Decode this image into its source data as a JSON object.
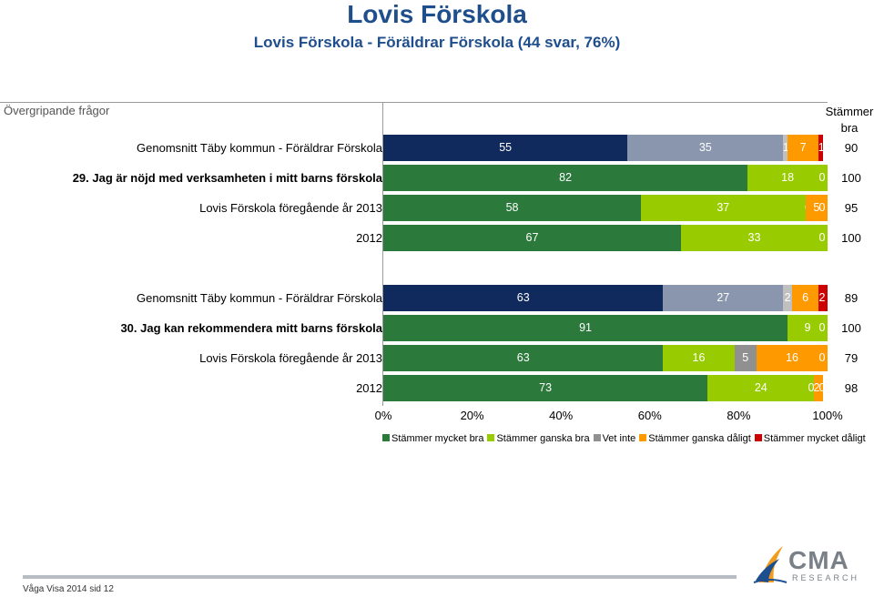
{
  "header": {
    "title": "Lovis Förskola",
    "subtitle": "Lovis Förskola - Föräldrar Förskola (44 svar,  76%)"
  },
  "section_label": "Övergripande frågor",
  "column_header": "Stämmer bra",
  "footer": "Våga Visa 2014 sid 12",
  "logo": {
    "name": "CMA",
    "sub": "RESEARCH"
  },
  "colors": {
    "mycket_bra": "#2b7a3b",
    "ganska_bra": "#99cc00",
    "vet_inte": "#909090",
    "ganska_daligt": "#ff9900",
    "mycket_daligt": "#cc0000",
    "kommun_mycket_bra": "#112a5e",
    "kommun_ganska_bra": "#8a96ae",
    "kommun_vet_inte": "#c0c0c0"
  },
  "chart_data": {
    "type": "bar",
    "orientation": "horizontal-stacked-100",
    "xlim": [
      0,
      100
    ],
    "xticks": [
      "0%",
      "20%",
      "40%",
      "60%",
      "80%",
      "100%"
    ],
    "legend_position": "bottom",
    "series": [
      {
        "name": "Stämmer mycket bra"
      },
      {
        "name": "Stämmer ganska bra"
      },
      {
        "name": "Vet inte"
      },
      {
        "name": "Stämmer ganska dåligt"
      },
      {
        "name": "Stämmer mycket dåligt"
      }
    ],
    "rows": [
      {
        "label": "Genomsnitt Täby kommun - Föräldrar Förskola",
        "kind": "kommun",
        "values": [
          55,
          35,
          1,
          7,
          1
        ],
        "labels": [
          "55",
          "35",
          "1",
          "7",
          "1"
        ],
        "total": "90"
      },
      {
        "label": "29. Jag är nöjd med verksamheten i mitt barns förskola",
        "kind": "question",
        "values": [
          82,
          18,
          0,
          0,
          0
        ],
        "labels": [
          "82",
          "18",
          "",
          "",
          "0"
        ],
        "total": "100"
      },
      {
        "label": "Lovis Förskola föregående år 2013",
        "kind": "prev",
        "values": [
          58,
          37,
          0,
          5,
          0
        ],
        "labels": [
          "58",
          "37",
          "0",
          "5",
          "0"
        ],
        "total": "95"
      },
      {
        "label": "2012",
        "kind": "prev",
        "values": [
          67,
          33,
          0,
          0,
          0
        ],
        "labels": [
          "67",
          "33",
          "",
          "",
          "0"
        ],
        "total": "100"
      },
      {
        "label": "Genomsnitt Täby kommun - Föräldrar Förskola",
        "kind": "kommun",
        "values": [
          63,
          27,
          2,
          6,
          2
        ],
        "labels": [
          "63",
          "27",
          "2",
          "6",
          "2"
        ],
        "total": "89"
      },
      {
        "label": "30. Jag kan rekommendera mitt barns förskola",
        "kind": "question",
        "values": [
          91,
          9,
          0,
          0,
          0
        ],
        "labels": [
          "91",
          "9",
          "",
          "",
          "0"
        ],
        "total": "100"
      },
      {
        "label": "Lovis Förskola föregående år 2013",
        "kind": "prev",
        "values": [
          63,
          16,
          5,
          16,
          0
        ],
        "labels": [
          "63",
          "16",
          "5",
          "16",
          "0"
        ],
        "total": "79"
      },
      {
        "label": "2012",
        "kind": "prev",
        "values": [
          73,
          24,
          0,
          2,
          0
        ],
        "labels": [
          "73",
          "24",
          "0",
          "2",
          "0"
        ],
        "total": "98"
      }
    ]
  }
}
